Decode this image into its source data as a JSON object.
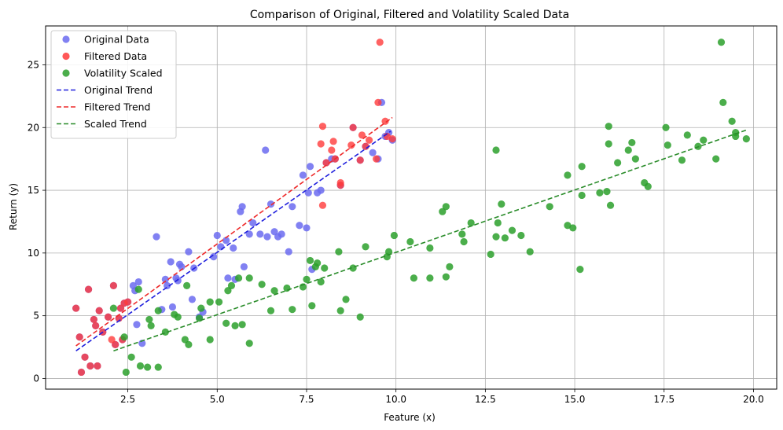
{
  "chart_data": {
    "type": "scatter",
    "title": "Comparison of Original, Filtered and Volatility Scaled Data",
    "xlabel": "Feature (x)",
    "ylabel": "Return (y)",
    "xlim": [
      0.2,
      20.65
    ],
    "ylim": [
      -0.85,
      28.1
    ],
    "xticks": [
      2.5,
      5.0,
      7.5,
      10.0,
      12.5,
      15.0,
      17.5,
      20.0
    ],
    "xtick_labels": [
      "2.5",
      "5.0",
      "7.5",
      "10.0",
      "12.5",
      "15.0",
      "17.5",
      "20.0"
    ],
    "yticks": [
      0,
      5,
      10,
      15,
      20,
      25
    ],
    "ytick_labels": [
      "0",
      "5",
      "10",
      "15",
      "20",
      "25"
    ],
    "grid": true,
    "legend_position": "top-left",
    "legend": [
      {
        "label": "Original Data",
        "kind": "marker",
        "color": "#6b6bf0"
      },
      {
        "label": "Filtered Data",
        "kind": "marker",
        "color": "#ff3b3b"
      },
      {
        "label": "Volatility Scaled",
        "kind": "marker",
        "color": "#2ca02c"
      },
      {
        "label": "Original Trend",
        "kind": "dashed-line",
        "color": "#2020dd"
      },
      {
        "label": "Filtered Trend",
        "kind": "dashed-line",
        "color": "#ee2a2a"
      },
      {
        "label": "Scaled Trend",
        "kind": "dashed-line",
        "color": "#2a8c2a"
      }
    ],
    "series": [
      {
        "name": "Original Data",
        "kind": "scatter",
        "color": "#6b6bf0",
        "opacity": 0.85,
        "points": [
          [
            1.05,
            5.6
          ],
          [
            1.15,
            3.3
          ],
          [
            1.2,
            0.5
          ],
          [
            1.3,
            1.7
          ],
          [
            1.4,
            7.1
          ],
          [
            1.45,
            1.0
          ],
          [
            1.55,
            4.7
          ],
          [
            1.6,
            4.2
          ],
          [
            1.65,
            1.0
          ],
          [
            1.7,
            5.4
          ],
          [
            1.8,
            3.7
          ],
          [
            1.95,
            4.9
          ],
          [
            2.1,
            7.4
          ],
          [
            2.15,
            2.7
          ],
          [
            2.25,
            4.8
          ],
          [
            2.3,
            5.6
          ],
          [
            2.35,
            3.1
          ],
          [
            2.4,
            6.0
          ],
          [
            2.5,
            6.1
          ],
          [
            2.65,
            7.4
          ],
          [
            2.7,
            7.0
          ],
          [
            2.75,
            4.3
          ],
          [
            2.8,
            7.7
          ],
          [
            2.9,
            2.8
          ],
          [
            3.3,
            11.3
          ],
          [
            3.45,
            5.5
          ],
          [
            3.55,
            7.9
          ],
          [
            3.6,
            7.4
          ],
          [
            3.7,
            9.3
          ],
          [
            3.75,
            5.7
          ],
          [
            3.85,
            8.0
          ],
          [
            3.9,
            7.8
          ],
          [
            3.95,
            9.1
          ],
          [
            4.0,
            8.9
          ],
          [
            4.2,
            10.1
          ],
          [
            4.3,
            6.3
          ],
          [
            4.35,
            8.8
          ],
          [
            4.5,
            4.9
          ],
          [
            4.6,
            5.3
          ],
          [
            4.9,
            9.7
          ],
          [
            5.0,
            11.4
          ],
          [
            5.1,
            10.5
          ],
          [
            5.25,
            11.0
          ],
          [
            5.3,
            8.0
          ],
          [
            5.45,
            10.4
          ],
          [
            5.5,
            7.9
          ],
          [
            5.65,
            13.3
          ],
          [
            5.7,
            13.7
          ],
          [
            5.75,
            8.9
          ],
          [
            5.9,
            11.5
          ],
          [
            6.0,
            12.4
          ],
          [
            6.2,
            11.5
          ],
          [
            6.35,
            18.2
          ],
          [
            6.4,
            11.3
          ],
          [
            6.5,
            13.9
          ],
          [
            6.6,
            11.7
          ],
          [
            6.7,
            11.3
          ],
          [
            6.8,
            11.5
          ],
          [
            7.0,
            10.1
          ],
          [
            7.1,
            13.7
          ],
          [
            7.3,
            12.2
          ],
          [
            7.4,
            16.2
          ],
          [
            7.5,
            12.0
          ],
          [
            7.55,
            14.8
          ],
          [
            7.6,
            16.9
          ],
          [
            7.65,
            8.7
          ],
          [
            7.8,
            14.8
          ],
          [
            7.9,
            15.0
          ],
          [
            8.05,
            17.2
          ],
          [
            8.2,
            17.5
          ],
          [
            8.3,
            17.5
          ],
          [
            8.45,
            15.4
          ],
          [
            8.8,
            20.0
          ],
          [
            9.0,
            17.4
          ],
          [
            9.15,
            18.5
          ],
          [
            9.35,
            18.0
          ],
          [
            9.5,
            17.5
          ],
          [
            9.6,
            22.0
          ],
          [
            9.7,
            19.3
          ],
          [
            9.8,
            19.6
          ],
          [
            9.9,
            19.0
          ]
        ]
      },
      {
        "name": "Filtered Data",
        "kind": "scatter",
        "color": "#ff3b3b",
        "opacity": 0.8,
        "points": [
          [
            1.05,
            5.6
          ],
          [
            1.15,
            3.3
          ],
          [
            1.2,
            0.5
          ],
          [
            1.3,
            1.7
          ],
          [
            1.4,
            7.1
          ],
          [
            1.45,
            1.0
          ],
          [
            1.55,
            4.7
          ],
          [
            1.6,
            4.2
          ],
          [
            1.65,
            1.0
          ],
          [
            1.7,
            5.4
          ],
          [
            1.8,
            3.7
          ],
          [
            1.95,
            4.9
          ],
          [
            2.05,
            3.1
          ],
          [
            2.1,
            7.4
          ],
          [
            2.15,
            2.7
          ],
          [
            2.25,
            4.8
          ],
          [
            2.3,
            5.6
          ],
          [
            2.35,
            3.1
          ],
          [
            2.4,
            6.0
          ],
          [
            2.5,
            6.1
          ],
          [
            7.9,
            18.7
          ],
          [
            7.95,
            20.1
          ],
          [
            7.95,
            13.8
          ],
          [
            8.05,
            17.2
          ],
          [
            8.2,
            18.2
          ],
          [
            8.25,
            18.9
          ],
          [
            8.3,
            17.5
          ],
          [
            8.45,
            15.6
          ],
          [
            8.45,
            15.4
          ],
          [
            8.75,
            18.6
          ],
          [
            8.8,
            20.0
          ],
          [
            9.0,
            17.4
          ],
          [
            9.05,
            19.4
          ],
          [
            9.15,
            18.5
          ],
          [
            9.25,
            19.0
          ],
          [
            9.45,
            17.5
          ],
          [
            9.5,
            22.0
          ],
          [
            9.55,
            26.8
          ],
          [
            9.7,
            20.5
          ],
          [
            9.75,
            19.3
          ],
          [
            9.9,
            19.1
          ]
        ]
      },
      {
        "name": "Volatility Scaled",
        "kind": "scatter",
        "color": "#2ca02c",
        "opacity": 0.85,
        "points": [
          [
            2.1,
            5.6
          ],
          [
            2.4,
            3.3
          ],
          [
            2.45,
            0.5
          ],
          [
            2.6,
            1.7
          ],
          [
            2.8,
            7.1
          ],
          [
            2.85,
            1.0
          ],
          [
            3.05,
            0.9
          ],
          [
            3.1,
            4.7
          ],
          [
            3.15,
            4.2
          ],
          [
            3.35,
            0.9
          ],
          [
            3.35,
            5.4
          ],
          [
            3.55,
            3.7
          ],
          [
            3.8,
            5.1
          ],
          [
            3.9,
            4.9
          ],
          [
            4.1,
            3.1
          ],
          [
            4.15,
            7.4
          ],
          [
            4.2,
            2.7
          ],
          [
            4.5,
            4.8
          ],
          [
            4.55,
            5.6
          ],
          [
            4.8,
            3.1
          ],
          [
            4.8,
            6.1
          ],
          [
            5.05,
            6.1
          ],
          [
            5.25,
            4.4
          ],
          [
            5.3,
            7.0
          ],
          [
            5.4,
            7.4
          ],
          [
            5.5,
            4.2
          ],
          [
            5.6,
            8.0
          ],
          [
            5.7,
            4.3
          ],
          [
            5.9,
            8.0
          ],
          [
            5.9,
            2.8
          ],
          [
            6.25,
            7.5
          ],
          [
            6.5,
            5.4
          ],
          [
            6.6,
            7.0
          ],
          [
            6.95,
            7.2
          ],
          [
            7.1,
            5.5
          ],
          [
            7.4,
            7.3
          ],
          [
            7.5,
            7.9
          ],
          [
            7.6,
            9.4
          ],
          [
            7.65,
            5.8
          ],
          [
            7.75,
            8.9
          ],
          [
            7.8,
            9.2
          ],
          [
            7.9,
            7.7
          ],
          [
            8.0,
            8.8
          ],
          [
            8.4,
            10.1
          ],
          [
            8.45,
            5.4
          ],
          [
            8.6,
            6.3
          ],
          [
            8.8,
            8.8
          ],
          [
            9.0,
            4.9
          ],
          [
            9.15,
            10.5
          ],
          [
            9.75,
            9.7
          ],
          [
            9.8,
            10.1
          ],
          [
            9.95,
            11.4
          ],
          [
            10.4,
            10.9
          ],
          [
            10.5,
            8.0
          ],
          [
            10.95,
            10.4
          ],
          [
            10.95,
            8.0
          ],
          [
            11.3,
            13.3
          ],
          [
            11.4,
            8.1
          ],
          [
            11.4,
            13.7
          ],
          [
            11.5,
            8.9
          ],
          [
            11.85,
            11.5
          ],
          [
            11.9,
            10.9
          ],
          [
            12.1,
            12.4
          ],
          [
            12.65,
            9.9
          ],
          [
            12.8,
            11.3
          ],
          [
            12.8,
            18.2
          ],
          [
            12.85,
            12.4
          ],
          [
            12.95,
            13.9
          ],
          [
            13.05,
            11.2
          ],
          [
            13.25,
            11.8
          ],
          [
            13.5,
            11.4
          ],
          [
            13.75,
            10.1
          ],
          [
            14.3,
            13.7
          ],
          [
            14.8,
            16.2
          ],
          [
            14.8,
            12.2
          ],
          [
            14.95,
            12.0
          ],
          [
            15.15,
            8.7
          ],
          [
            15.2,
            14.6
          ],
          [
            15.2,
            16.9
          ],
          [
            15.7,
            14.8
          ],
          [
            15.9,
            14.9
          ],
          [
            15.95,
            18.7
          ],
          [
            15.95,
            20.1
          ],
          [
            16.0,
            13.8
          ],
          [
            16.2,
            17.2
          ],
          [
            16.5,
            18.2
          ],
          [
            16.6,
            18.8
          ],
          [
            16.7,
            17.5
          ],
          [
            16.95,
            15.6
          ],
          [
            17.05,
            15.3
          ],
          [
            17.55,
            20.0
          ],
          [
            17.6,
            18.6
          ],
          [
            18.0,
            17.4
          ],
          [
            18.15,
            19.4
          ],
          [
            18.45,
            18.5
          ],
          [
            18.6,
            19.0
          ],
          [
            18.95,
            17.5
          ],
          [
            19.1,
            26.8
          ],
          [
            19.15,
            22.0
          ],
          [
            19.4,
            20.5
          ],
          [
            19.5,
            19.3
          ],
          [
            19.5,
            19.6
          ],
          [
            19.8,
            19.1
          ]
        ]
      },
      {
        "name": "Original Trend",
        "kind": "dashed-line",
        "color": "#2020dd",
        "points": [
          [
            1.05,
            2.2
          ],
          [
            9.85,
            19.7
          ]
        ]
      },
      {
        "name": "Filtered Trend",
        "kind": "dashed-line",
        "color": "#ee2a2a",
        "points": [
          [
            1.05,
            2.6
          ],
          [
            9.9,
            20.8
          ]
        ]
      },
      {
        "name": "Scaled Trend",
        "kind": "dashed-line",
        "color": "#2a8c2a",
        "points": [
          [
            2.1,
            2.2
          ],
          [
            19.8,
            19.8
          ]
        ]
      }
    ]
  }
}
